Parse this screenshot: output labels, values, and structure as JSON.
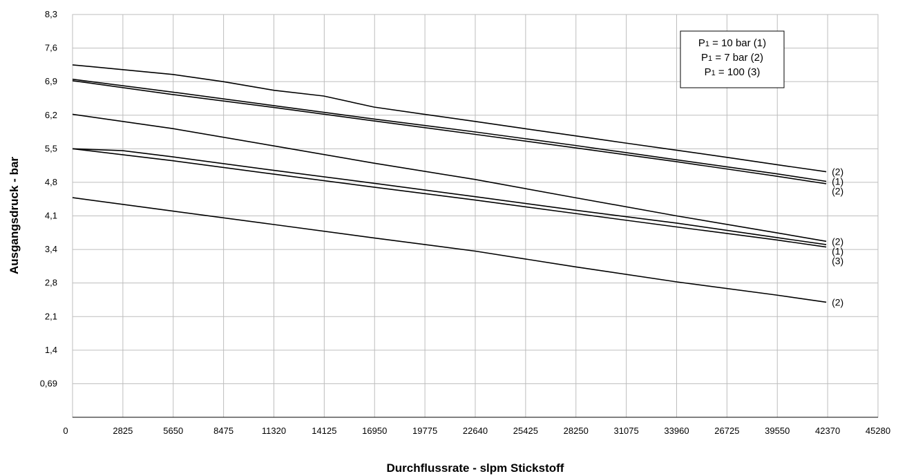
{
  "chart_data": {
    "type": "line",
    "xlabel": "Durchflussrate - slpm Stickstoff",
    "ylabel": "Ausgangsdruck - bar",
    "x_ticks": [
      "0",
      "2825",
      "5650",
      "8475",
      "11320",
      "14125",
      "16950",
      "19775",
      "22640",
      "25425",
      "28250",
      "31075",
      "33960",
      "26725",
      "39550",
      "42370",
      "45280"
    ],
    "y_ticks": [
      "",
      "0,69",
      "1,4",
      "2,1",
      "2,8",
      "3,4",
      "4,1",
      "4,8",
      "5,5",
      "6,2",
      "6,9",
      "7,6",
      "8,3"
    ],
    "grid": true,
    "legend": {
      "position": "top-right",
      "entries": [
        {
          "main": "P",
          "sub": "1",
          "text": " = 10 bar (1)"
        },
        {
          "main": "P",
          "sub": "1",
          "text": " = 7 bar (2)"
        },
        {
          "main": "P",
          "sub": "1",
          "text": " = 100 (3)"
        }
      ]
    },
    "series": [
      {
        "label": "(2)",
        "points": [
          [
            0,
            7.25
          ],
          [
            2825,
            7.15
          ],
          [
            5650,
            7.05
          ],
          [
            8475,
            6.9
          ],
          [
            11320,
            6.72
          ],
          [
            14125,
            6.6
          ],
          [
            16950,
            6.37
          ],
          [
            19775,
            6.22
          ],
          [
            22640,
            6.07
          ],
          [
            25425,
            5.92
          ],
          [
            28250,
            5.77
          ],
          [
            31075,
            5.62
          ],
          [
            33960,
            5.47
          ],
          [
            36800,
            5.32
          ],
          [
            39550,
            5.17
          ],
          [
            42370,
            5.02
          ]
        ]
      },
      {
        "label": "(1)",
        "points": [
          [
            0,
            6.95
          ],
          [
            5650,
            6.68
          ],
          [
            11320,
            6.4
          ],
          [
            16950,
            6.12
          ],
          [
            22640,
            5.85
          ],
          [
            28250,
            5.57
          ],
          [
            33960,
            5.27
          ],
          [
            39550,
            4.98
          ],
          [
            42370,
            4.82
          ]
        ]
      },
      {
        "label": "(2)",
        "points": [
          [
            0,
            6.92
          ],
          [
            5650,
            6.63
          ],
          [
            11320,
            6.36
          ],
          [
            16950,
            6.08
          ],
          [
            22640,
            5.8
          ],
          [
            28250,
            5.52
          ],
          [
            33960,
            5.23
          ],
          [
            39550,
            4.93
          ],
          [
            42370,
            4.77
          ]
        ]
      },
      {
        "label": "(2)",
        "points": [
          [
            0,
            6.22
          ],
          [
            5650,
            5.92
          ],
          [
            11320,
            5.56
          ],
          [
            16950,
            5.2
          ],
          [
            22640,
            4.86
          ],
          [
            28250,
            4.48
          ],
          [
            33960,
            4.1
          ],
          [
            39550,
            3.75
          ],
          [
            42370,
            3.57
          ]
        ]
      },
      {
        "label": "(1)",
        "points": [
          [
            0,
            5.5
          ],
          [
            2825,
            5.46
          ],
          [
            5650,
            5.33
          ],
          [
            11320,
            5.05
          ],
          [
            16950,
            4.78
          ],
          [
            22640,
            4.5
          ],
          [
            28250,
            4.22
          ],
          [
            33960,
            3.95
          ],
          [
            39550,
            3.65
          ],
          [
            42370,
            3.5
          ]
        ]
      },
      {
        "label": "(3)",
        "points": [
          [
            0,
            5.5
          ],
          [
            5650,
            5.25
          ],
          [
            11320,
            4.97
          ],
          [
            16950,
            4.7
          ],
          [
            22640,
            4.43
          ],
          [
            28250,
            4.15
          ],
          [
            33960,
            3.87
          ],
          [
            39550,
            3.6
          ],
          [
            42370,
            3.45
          ]
        ]
      },
      {
        "label": "(2)",
        "points": [
          [
            0,
            4.48
          ],
          [
            5650,
            4.2
          ],
          [
            11320,
            3.92
          ],
          [
            16950,
            3.64
          ],
          [
            22640,
            3.37
          ],
          [
            28250,
            3.09
          ],
          [
            33960,
            2.82
          ],
          [
            39550,
            2.55
          ],
          [
            42370,
            2.4
          ]
        ]
      }
    ]
  }
}
